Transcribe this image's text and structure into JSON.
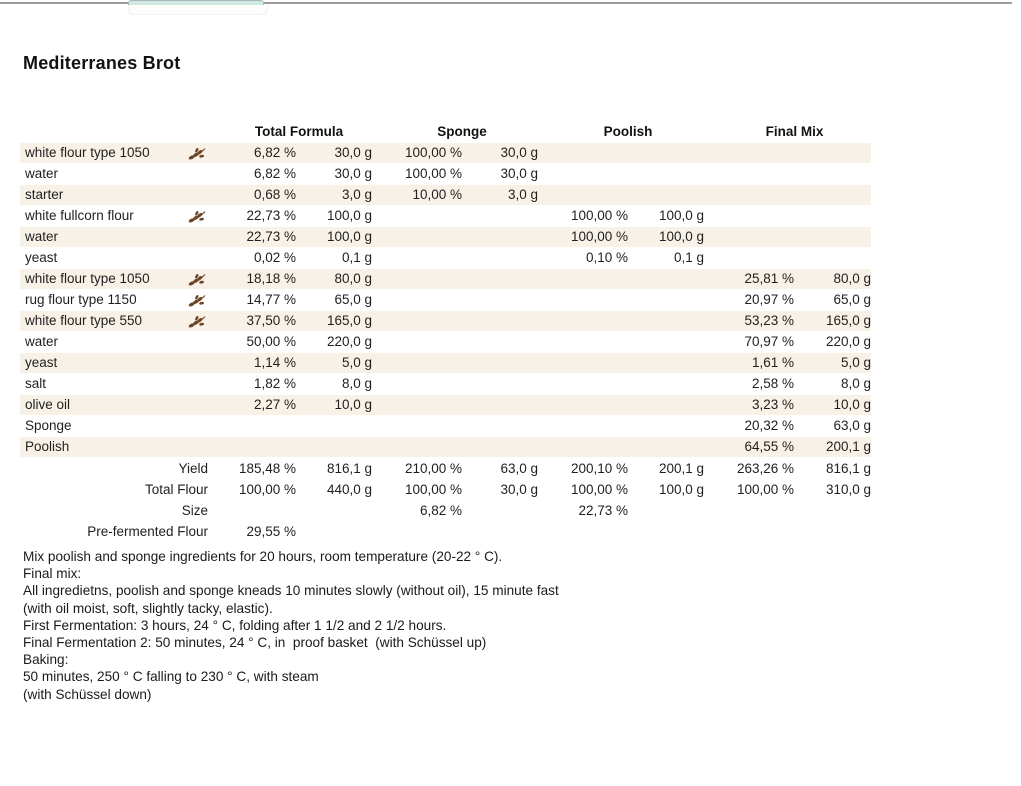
{
  "page": {
    "title": "Mediterranes Brot"
  },
  "colors": {
    "row_shade_beige": "#f8f1e7",
    "wheat_brown": "#6d4524",
    "active_tab_teal": "#cfe9e5",
    "tab_line_gray": "#9c9c9c"
  },
  "table": {
    "header_groups": [
      {
        "label": "Total Formula"
      },
      {
        "label": "Sponge"
      },
      {
        "label": "Poolish"
      },
      {
        "label": "Final Mix"
      }
    ],
    "rows": [
      {
        "name": "white flour type 1050",
        "icon": "wheat",
        "shaded": true,
        "values": [
          "6,82 %",
          "30,0 g",
          "100,00 %",
          "30,0 g",
          "",
          "",
          "",
          ""
        ]
      },
      {
        "name": "water",
        "icon": "",
        "shaded": false,
        "values": [
          "6,82 %",
          "30,0 g",
          "100,00 %",
          "30,0 g",
          "",
          "",
          "",
          ""
        ]
      },
      {
        "name": "starter",
        "icon": "",
        "shaded": true,
        "values": [
          "0,68 %",
          "3,0 g",
          "10,00 %",
          "3,0 g",
          "",
          "",
          "",
          ""
        ]
      },
      {
        "name": "white fullcorn flour",
        "icon": "wheat",
        "shaded": false,
        "values": [
          "22,73 %",
          "100,0 g",
          "",
          "",
          "100,00 %",
          "100,0 g",
          "",
          ""
        ]
      },
      {
        "name": "water",
        "icon": "",
        "shaded": true,
        "values": [
          "22,73 %",
          "100,0 g",
          "",
          "",
          "100,00 %",
          "100,0 g",
          "",
          ""
        ]
      },
      {
        "name": "yeast",
        "icon": "",
        "shaded": false,
        "values": [
          "0,02 %",
          "0,1 g",
          "",
          "",
          "0,10 %",
          "0,1 g",
          "",
          ""
        ]
      },
      {
        "name": "white flour type 1050",
        "icon": "wheat",
        "shaded": true,
        "values": [
          "18,18 %",
          "80,0 g",
          "",
          "",
          "",
          "",
          "25,81 %",
          "80,0 g"
        ]
      },
      {
        "name": "rug flour type 1150",
        "icon": "wheat",
        "shaded": false,
        "values": [
          "14,77 %",
          "65,0 g",
          "",
          "",
          "",
          "",
          "20,97 %",
          "65,0 g"
        ]
      },
      {
        "name": "white flour type 550",
        "icon": "wheat",
        "shaded": true,
        "values": [
          "37,50 %",
          "165,0 g",
          "",
          "",
          "",
          "",
          "53,23 %",
          "165,0 g"
        ]
      },
      {
        "name": "water",
        "icon": "",
        "shaded": false,
        "values": [
          "50,00 %",
          "220,0 g",
          "",
          "",
          "",
          "",
          "70,97 %",
          "220,0 g"
        ]
      },
      {
        "name": "yeast",
        "icon": "",
        "shaded": true,
        "values": [
          "1,14 %",
          "5,0 g",
          "",
          "",
          "",
          "",
          "1,61 %",
          "5,0 g"
        ]
      },
      {
        "name": "salt",
        "icon": "",
        "shaded": false,
        "values": [
          "1,82 %",
          "8,0 g",
          "",
          "",
          "",
          "",
          "2,58 %",
          "8,0 g"
        ]
      },
      {
        "name": "olive oil",
        "icon": "",
        "shaded": true,
        "values": [
          "2,27 %",
          "10,0 g",
          "",
          "",
          "",
          "",
          "3,23 %",
          "10,0 g"
        ]
      },
      {
        "name": "Sponge",
        "icon": "",
        "shaded": false,
        "values": [
          "",
          "",
          "",
          "",
          "",
          "",
          "20,32 %",
          "63,0 g"
        ]
      },
      {
        "name": "Poolish",
        "icon": "",
        "shaded": true,
        "values": [
          "",
          "",
          "",
          "",
          "",
          "",
          "64,55 %",
          "200,1 g"
        ]
      }
    ],
    "summary": [
      {
        "label": "Yield",
        "values": [
          "185,48 %",
          "816,1 g",
          "210,00 %",
          "63,0 g",
          "200,10 %",
          "200,1 g",
          "263,26 %",
          "816,1 g"
        ]
      },
      {
        "label": "Total Flour",
        "values": [
          "100,00 %",
          "440,0 g",
          "100,00 %",
          "30,0 g",
          "100,00 %",
          "100,0 g",
          "100,00 %",
          "310,0 g"
        ]
      },
      {
        "label": "Size",
        "values": [
          "",
          "",
          "6,82 %",
          "",
          "22,73 %",
          "",
          "",
          ""
        ]
      },
      {
        "label": "Pre-fermented Flour",
        "values": [
          "29,55 %",
          "",
          "",
          "",
          "",
          "",
          "",
          ""
        ]
      }
    ]
  },
  "notes": [
    "Mix poolish and sponge ingredients for 20 hours, room temperature (20-22 ° C).",
    "Final mix:",
    "All ingredietns, poolish and sponge kneads 10 minutes slowly (without oil), 15 minute fast",
    "(with oil moist, soft, slightly tacky, elastic).",
    "First Fermentation: 3 hours, 24 ° C, folding after 1 1/2 and 2 1/2 hours.",
    "Final Fermentation 2: 50 minutes, 24 ° C, in  proof basket  (with Schüssel up)",
    "Baking:",
    "50 minutes, 250 ° C falling to 230 ° C, with steam",
    "(with Schüssel down)"
  ]
}
